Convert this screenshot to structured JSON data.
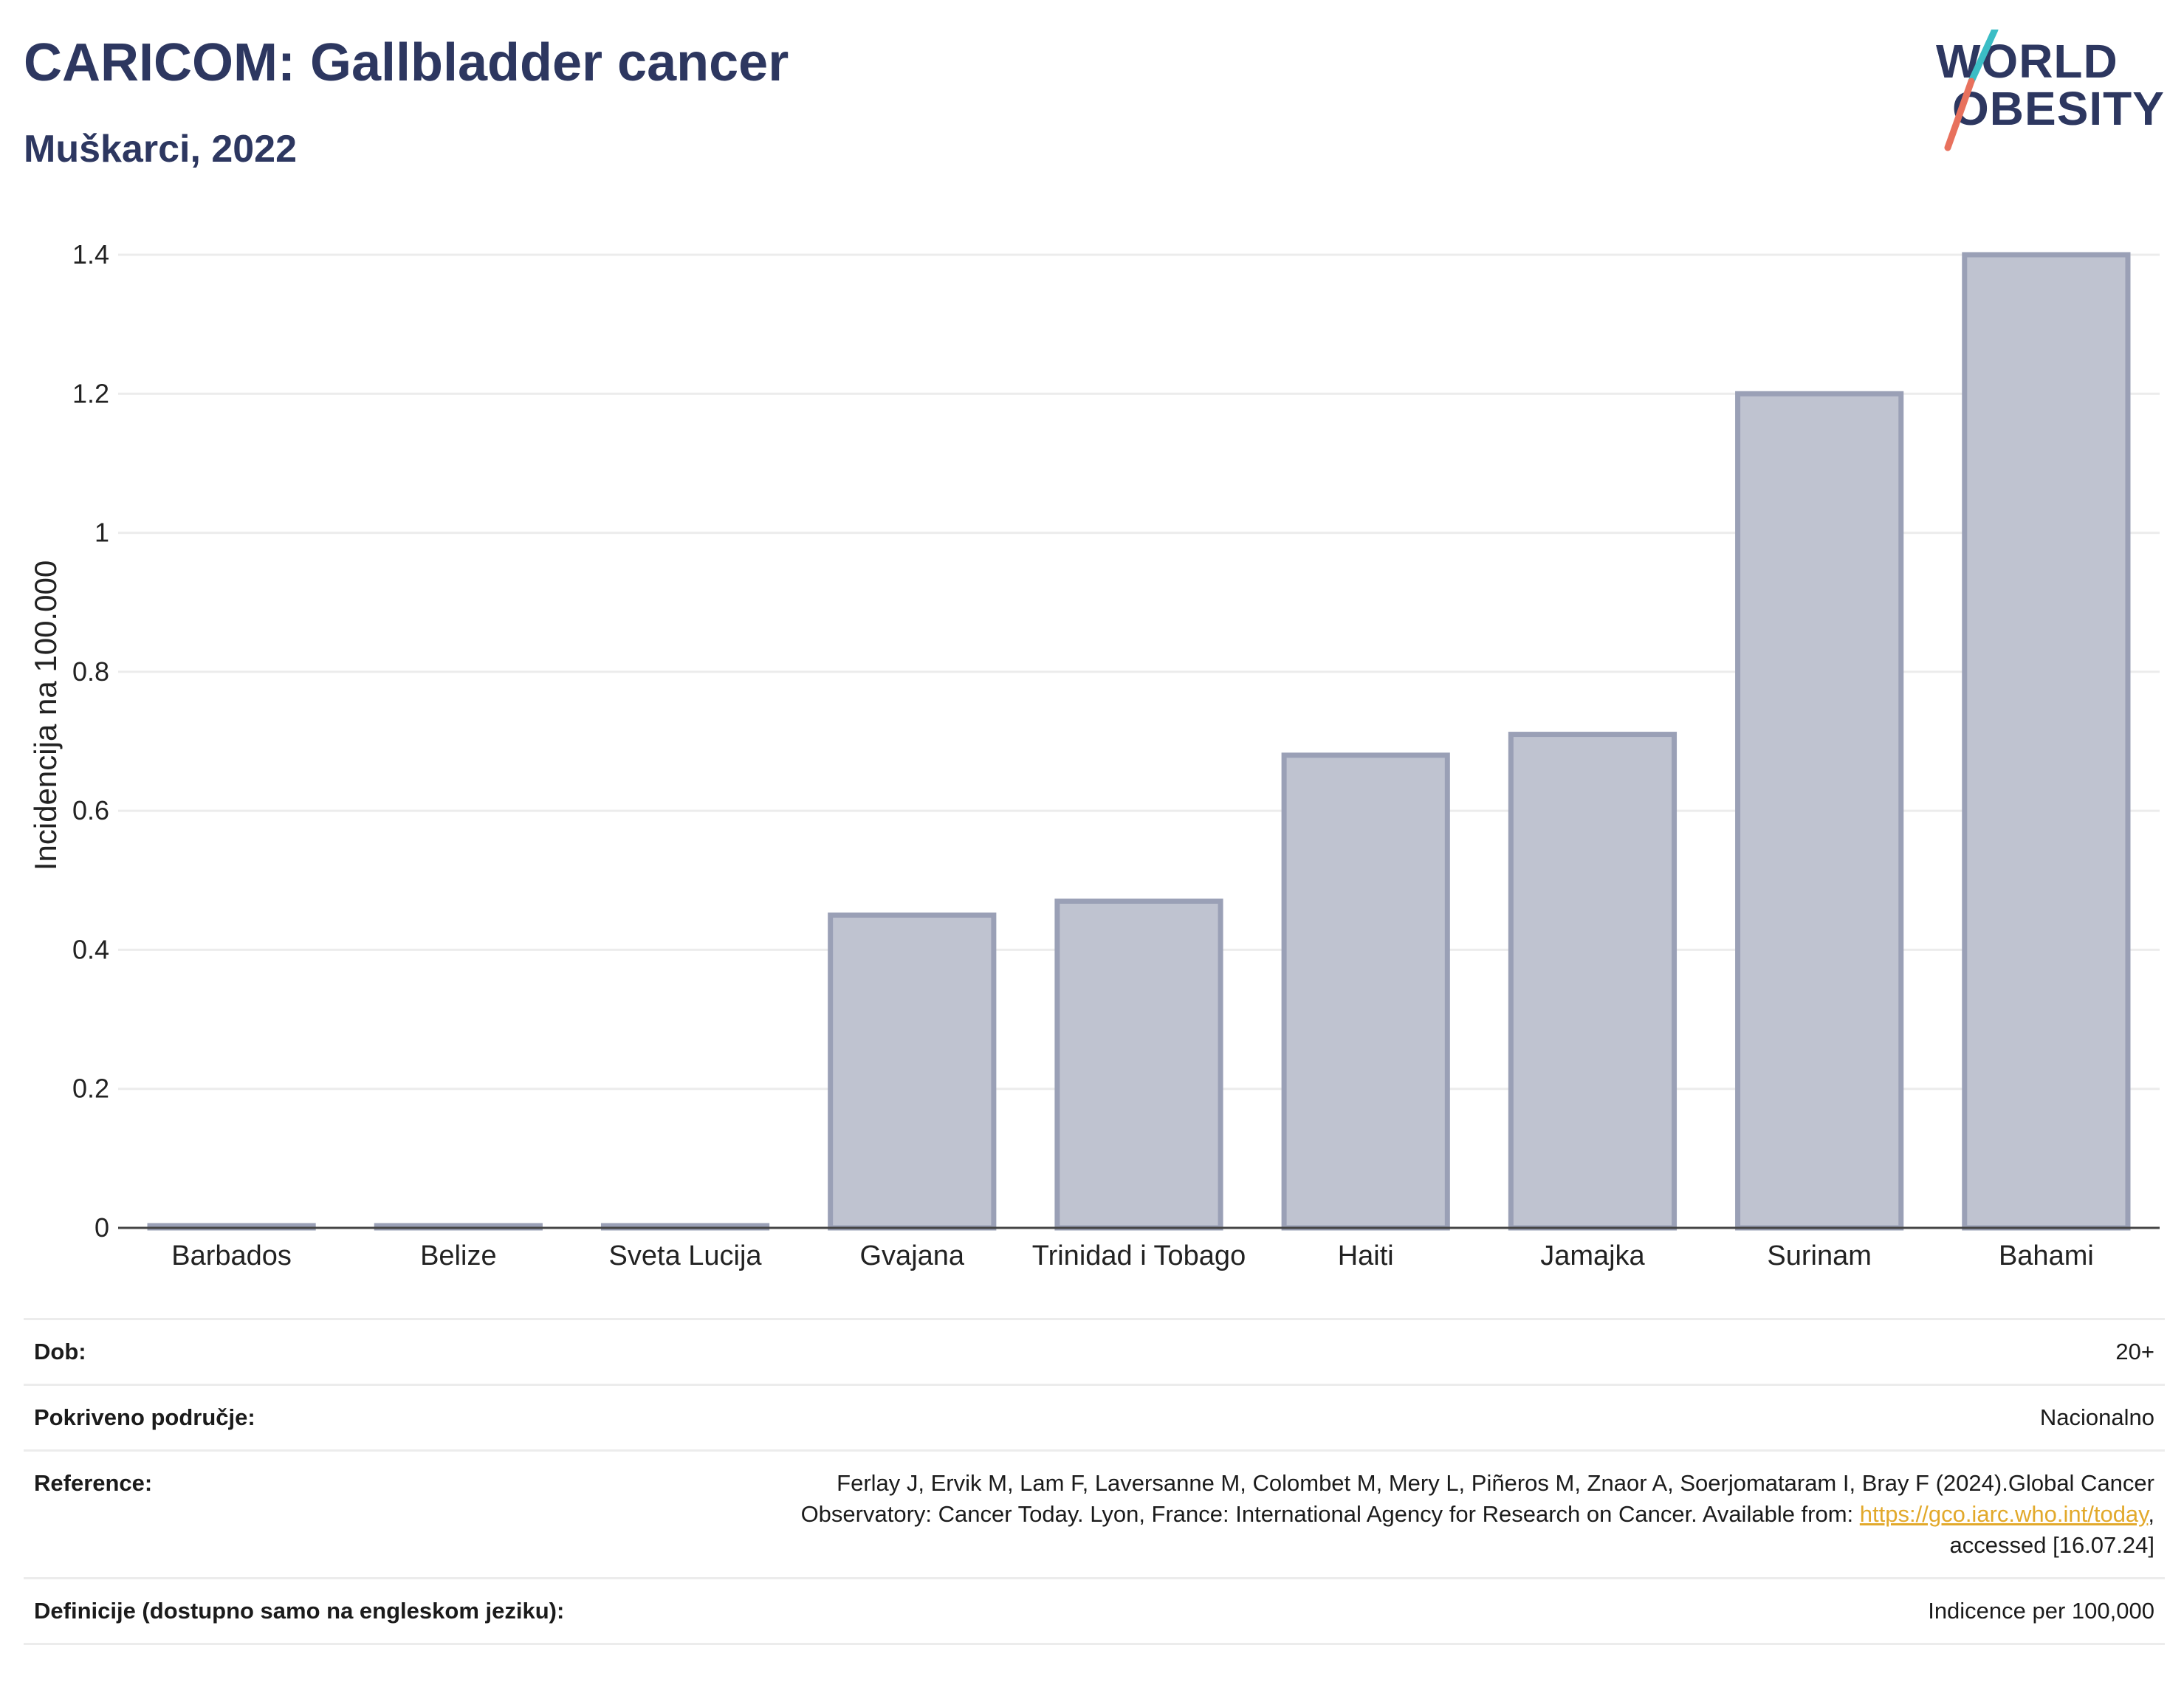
{
  "header": {
    "title": "CARICOM: Gallbladder cancer",
    "subtitle": "Muškarci, 2022",
    "logo_line1": "WORLD",
    "logo_line2": "OBESITY"
  },
  "colors": {
    "bar_fill": "#bfc3d0",
    "bar_stroke": "#9aa0b6",
    "title": "#2d3760",
    "grid": "#ececec",
    "axis": "#444444",
    "link": "#e2a92b",
    "logo_teal": "#3bbdc5",
    "logo_red": "#e8715d"
  },
  "chart_data": {
    "type": "bar",
    "title": "CARICOM: Gallbladder cancer",
    "subtitle": "Muškarci, 2022",
    "categories": [
      "Barbados",
      "Belize",
      "Sveta Lucija",
      "Gvajana",
      "Trinidad i Tobago",
      "Haiti",
      "Jamajka",
      "Surinam",
      "Bahami"
    ],
    "values": [
      0,
      0,
      0,
      0.45,
      0.47,
      0.68,
      0.71,
      1.2,
      1.4
    ],
    "xlabel": "",
    "ylabel": "Incidencija na 100.000",
    "ylim": [
      0,
      1.4
    ],
    "yticks": [
      0,
      0.2,
      0.4,
      0.6,
      0.8,
      1,
      1.2,
      1.4
    ],
    "ytick_labels": [
      "0",
      "0.2",
      "0.4",
      "0.6",
      "0.8",
      "1",
      "1.2",
      "1.4"
    ],
    "grid": true,
    "legend": "none"
  },
  "info": {
    "age_label": "Dob:",
    "age_value": "20+",
    "coverage_label": "Pokriveno područje:",
    "coverage_value": "Nacionalno",
    "reference_label": "Reference:",
    "reference_line1": "Ferlay J, Ervik M, Lam F, Laversanne M, Colombet M, Mery L, Piñeros M, Znaor A, Soerjomataram I, Bray F (2024).Global Cancer",
    "reference_line2_pre": "Observatory: Cancer Today. Lyon, France: International Agency for Research on Cancer. Available from: ",
    "reference_link": "https://gco.iarc.who.int/today",
    "reference_line2_post": ",",
    "reference_line3": "accessed [16.07.24]",
    "definitions_label": "Definicije (dostupno samo na engleskom jeziku):",
    "definitions_value": "Indicence per 100,000"
  }
}
